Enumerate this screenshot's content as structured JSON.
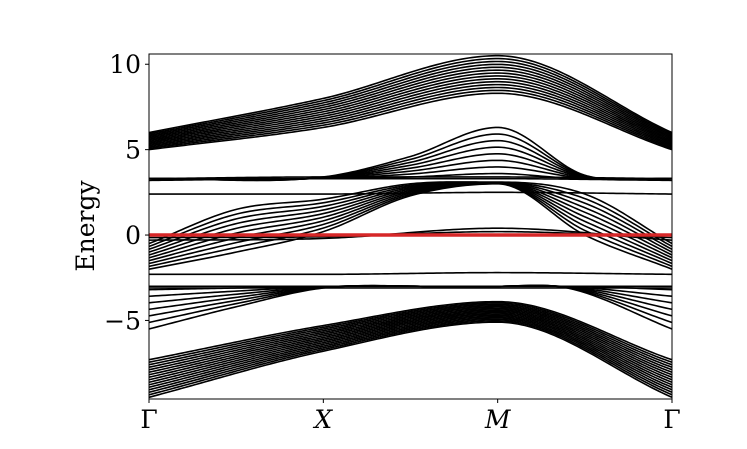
{
  "chart_data": {
    "type": "line",
    "title": "",
    "xlabel": "",
    "ylabel": "Energy",
    "xlim": [
      0,
      3
    ],
    "ylim": [
      -9.6,
      10.6
    ],
    "x_ticks": [
      {
        "value": 0,
        "label": "Γ"
      },
      {
        "value": 1,
        "label": "X"
      },
      {
        "value": 2,
        "label": "M"
      },
      {
        "value": 3,
        "label": "Γ"
      }
    ],
    "y_ticks": [
      {
        "value": -5,
        "label": "−5"
      },
      {
        "value": 0,
        "label": "0"
      },
      {
        "value": 5,
        "label": "5"
      },
      {
        "value": 10,
        "label": "10"
      }
    ],
    "grid": false,
    "legend": "none",
    "colors": {
      "bands": "#000000",
      "highlight": "#d62728"
    },
    "series": [
      {
        "group": "upper-bulk",
        "x": [
          0,
          1,
          2,
          3
        ],
        "y_first": [
          5.0,
          6.3,
          8.3,
          5.0
        ],
        "y_last": [
          6.0,
          8.0,
          10.5,
          6.0
        ],
        "count": 14
      },
      {
        "group": "upper-flat",
        "x": [
          0,
          1,
          2,
          3
        ],
        "y": [
          3.2,
          3.3,
          3.3,
          3.2
        ]
      },
      {
        "group": "upper-flat",
        "x": [
          0,
          1,
          2,
          3
        ],
        "y": [
          3.3,
          3.4,
          3.4,
          3.3
        ]
      },
      {
        "group": "upper-flat",
        "x": [
          0,
          1,
          2,
          3
        ],
        "y": [
          2.4,
          2.4,
          2.5,
          2.4
        ]
      },
      {
        "group": "dome",
        "x": [
          0,
          1,
          1.5,
          2,
          2.5,
          3
        ],
        "y_first": [
          3.3,
          3.3,
          3.4,
          3.6,
          3.3,
          3.3
        ],
        "y_last": [
          3.3,
          3.4,
          4.6,
          6.3,
          3.5,
          3.3
        ],
        "count": 8
      },
      {
        "group": "middle",
        "x": [
          0,
          0.5,
          1,
          1.5,
          2,
          2.5,
          3
        ],
        "y_first": [
          -2.0,
          -1.0,
          0.2,
          2.3,
          3.0,
          0.0,
          -2.0
        ],
        "y_last": [
          -0.5,
          1.5,
          2.1,
          3.0,
          3.1,
          2.4,
          -0.5
        ],
        "count": 10
      },
      {
        "group": "lower-flat",
        "x": [
          0,
          1,
          2,
          3
        ],
        "y": [
          -2.3,
          -2.3,
          -2.2,
          -2.3
        ]
      },
      {
        "group": "lower-flat",
        "x": [
          0,
          1,
          2,
          3
        ],
        "y": [
          -3.0,
          -3.0,
          -3.0,
          -3.0
        ]
      },
      {
        "group": "lower-flat",
        "x": [
          0,
          1,
          2,
          3
        ],
        "y": [
          -3.1,
          -3.1,
          -3.1,
          -3.1
        ]
      },
      {
        "group": "lower-fan",
        "x": [
          0,
          0.5,
          1,
          1.6,
          2,
          2.4,
          3
        ],
        "y_first": [
          -5.5,
          -4.2,
          -3.1,
          -3.0,
          -3.0,
          -3.1,
          -5.5
        ],
        "y_last": [
          -3.2,
          -3.1,
          -3.0,
          -3.0,
          -3.0,
          -3.0,
          -3.2
        ],
        "count": 7
      },
      {
        "group": "lower-bulk",
        "x": [
          0,
          1,
          2,
          3
        ],
        "y_first": [
          -9.5,
          -6.8,
          -5.1,
          -9.5
        ],
        "y_last": [
          -7.3,
          -5.3,
          -3.9,
          -7.3
        ],
        "count": 16
      },
      {
        "group": "near-zero",
        "x": [
          0,
          1,
          2,
          3
        ],
        "y": [
          -0.3,
          -0.2,
          0.4,
          -0.3
        ]
      },
      {
        "group": "near-zero",
        "x": [
          0,
          1,
          2,
          3
        ],
        "y": [
          -0.15,
          -0.1,
          0.2,
          -0.15
        ]
      },
      {
        "group": "highlight",
        "x": [
          0,
          3
        ],
        "y": [
          0,
          0
        ]
      }
    ]
  }
}
